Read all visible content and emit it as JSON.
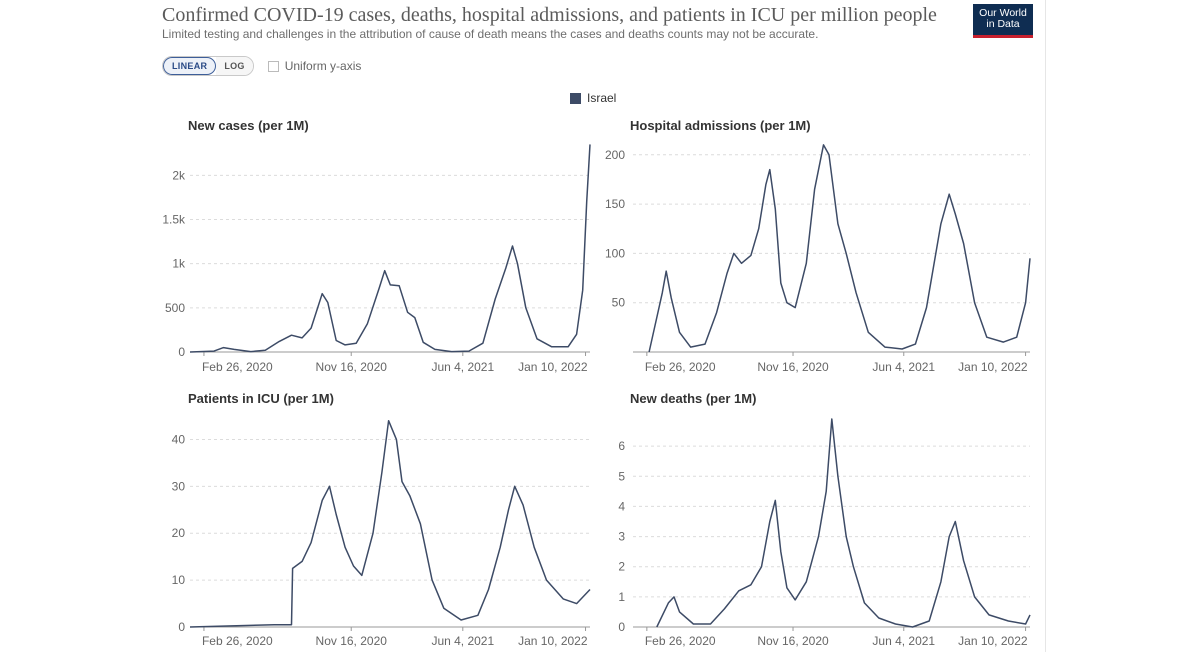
{
  "header": {
    "title": "Confirmed COVID-19 cases, deaths, hospital admissions, and patients in ICU per million people",
    "subtitle": "Limited testing and challenges in the attribution of cause of death means the cases and deaths counts may not be accurate.",
    "logo_line1": "Our World",
    "logo_line2": "in Data"
  },
  "controls": {
    "linear_label": "LINEAR",
    "log_label": "LOG",
    "uniform_label": "Uniform y-axis",
    "uniform_checked": false
  },
  "legend": {
    "label": "Israel",
    "color": "#3d4b66"
  },
  "colors": {
    "series": "#3d4b66",
    "grid": "#dcdcdc"
  },
  "chart_data": [
    {
      "type": "line",
      "title": "New cases (per 1M)",
      "x_ticks": [
        "Feb 26, 2020",
        "Nov 16, 2020",
        "Jun 4, 2021",
        "Jan 10, 2022"
      ],
      "y_ticks": [
        0,
        500,
        1000,
        1500,
        2000
      ],
      "y_tick_labels": [
        "0",
        "500",
        "1k",
        "1.5k",
        "2k"
      ],
      "ylim": [
        0,
        2400
      ],
      "xlim": [
        "2020-02-01",
        "2022-01-18"
      ],
      "series": [
        {
          "name": "Israel",
          "points": [
            [
              "2020-02-01",
              0
            ],
            [
              "2020-03-15",
              10
            ],
            [
              "2020-04-01",
              50
            ],
            [
              "2020-04-20",
              30
            ],
            [
              "2020-05-20",
              5
            ],
            [
              "2020-06-15",
              20
            ],
            [
              "2020-07-10",
              120
            ],
            [
              "2020-08-01",
              190
            ],
            [
              "2020-08-20",
              160
            ],
            [
              "2020-09-05",
              270
            ],
            [
              "2020-09-25",
              660
            ],
            [
              "2020-10-05",
              560
            ],
            [
              "2020-10-20",
              130
            ],
            [
              "2020-11-05",
              80
            ],
            [
              "2020-11-25",
              100
            ],
            [
              "2020-12-15",
              320
            ],
            [
              "2021-01-05",
              720
            ],
            [
              "2021-01-15",
              920
            ],
            [
              "2021-01-25",
              760
            ],
            [
              "2021-02-10",
              750
            ],
            [
              "2021-02-25",
              450
            ],
            [
              "2021-03-10",
              390
            ],
            [
              "2021-03-25",
              110
            ],
            [
              "2021-04-15",
              30
            ],
            [
              "2021-05-15",
              5
            ],
            [
              "2021-06-15",
              10
            ],
            [
              "2021-07-10",
              100
            ],
            [
              "2021-08-01",
              600
            ],
            [
              "2021-08-20",
              950
            ],
            [
              "2021-09-01",
              1200
            ],
            [
              "2021-09-10",
              1000
            ],
            [
              "2021-09-25",
              500
            ],
            [
              "2021-10-15",
              150
            ],
            [
              "2021-11-10",
              60
            ],
            [
              "2021-12-10",
              60
            ],
            [
              "2021-12-25",
              200
            ],
            [
              "2022-01-05",
              700
            ],
            [
              "2022-01-12",
              1700
            ],
            [
              "2022-01-18",
              2350
            ]
          ]
        }
      ]
    },
    {
      "type": "line",
      "title": "Hospital admissions (per 1M)",
      "x_ticks": [
        "Feb 26, 2020",
        "Nov 16, 2020",
        "Jun 4, 2021",
        "Jan 10, 2022"
      ],
      "y_ticks": [
        50,
        100,
        150,
        200
      ],
      "y_tick_labels": [
        "50",
        "100",
        "150",
        "200"
      ],
      "ylim": [
        0,
        215
      ],
      "xlim": [
        "2020-02-01",
        "2022-01-18"
      ],
      "series": [
        {
          "name": "Israel",
          "points": [
            [
              "2020-03-01",
              0
            ],
            [
              "2020-03-15",
              35
            ],
            [
              "2020-03-25",
              60
            ],
            [
              "2020-04-01",
              82
            ],
            [
              "2020-04-10",
              55
            ],
            [
              "2020-04-25",
              20
            ],
            [
              "2020-05-15",
              5
            ],
            [
              "2020-06-10",
              8
            ],
            [
              "2020-07-01",
              40
            ],
            [
              "2020-07-20",
              80
            ],
            [
              "2020-08-01",
              100
            ],
            [
              "2020-08-15",
              90
            ],
            [
              "2020-09-01",
              98
            ],
            [
              "2020-09-15",
              125
            ],
            [
              "2020-09-28",
              170
            ],
            [
              "2020-10-05",
              185
            ],
            [
              "2020-10-15",
              145
            ],
            [
              "2020-10-25",
              70
            ],
            [
              "2020-11-05",
              50
            ],
            [
              "2020-11-20",
              45
            ],
            [
              "2020-12-10",
              90
            ],
            [
              "2020-12-25",
              165
            ],
            [
              "2021-01-10",
              210
            ],
            [
              "2021-01-20",
              200
            ],
            [
              "2021-02-05",
              130
            ],
            [
              "2021-02-20",
              100
            ],
            [
              "2021-03-10",
              60
            ],
            [
              "2021-04-01",
              20
            ],
            [
              "2021-05-01",
              5
            ],
            [
              "2021-06-01",
              3
            ],
            [
              "2021-06-25",
              8
            ],
            [
              "2021-07-15",
              45
            ],
            [
              "2021-08-10",
              130
            ],
            [
              "2021-08-25",
              160
            ],
            [
              "2021-09-05",
              140
            ],
            [
              "2021-09-20",
              110
            ],
            [
              "2021-10-10",
              50
            ],
            [
              "2021-11-01",
              15
            ],
            [
              "2021-12-01",
              10
            ],
            [
              "2021-12-25",
              15
            ],
            [
              "2022-01-10",
              50
            ],
            [
              "2022-01-18",
              95
            ]
          ]
        }
      ]
    },
    {
      "type": "line",
      "title": "Patients in ICU (per 1M)",
      "x_ticks": [
        "Feb 26, 2020",
        "Nov 16, 2020",
        "Jun 4, 2021",
        "Jan 10, 2022"
      ],
      "y_ticks": [
        0,
        10,
        20,
        30,
        40
      ],
      "y_tick_labels": [
        "0",
        "10",
        "20",
        "30",
        "40"
      ],
      "ylim": [
        0,
        45
      ],
      "xlim": [
        "2020-02-01",
        "2022-01-18"
      ],
      "series": [
        {
          "name": "Israel",
          "points": [
            [
              "2020-02-01",
              0
            ],
            [
              "2020-07-01",
              0.5
            ],
            [
              "2020-08-01",
              0.5
            ],
            [
              "2020-08-03",
              12.5
            ],
            [
              "2020-08-20",
              14
            ],
            [
              "2020-09-05",
              18
            ],
            [
              "2020-09-25",
              27
            ],
            [
              "2020-10-08",
              30
            ],
            [
              "2020-10-20",
              24
            ],
            [
              "2020-11-05",
              17
            ],
            [
              "2020-11-20",
              13
            ],
            [
              "2020-12-05",
              11
            ],
            [
              "2020-12-25",
              20
            ],
            [
              "2021-01-10",
              33
            ],
            [
              "2021-01-22",
              44
            ],
            [
              "2021-02-05",
              40
            ],
            [
              "2021-02-15",
              31
            ],
            [
              "2021-03-01",
              28
            ],
            [
              "2021-03-20",
              22
            ],
            [
              "2021-04-10",
              10
            ],
            [
              "2021-05-01",
              4
            ],
            [
              "2021-06-01",
              1.5
            ],
            [
              "2021-07-01",
              2.5
            ],
            [
              "2021-07-20",
              8
            ],
            [
              "2021-08-10",
              17
            ],
            [
              "2021-08-25",
              25
            ],
            [
              "2021-09-05",
              30
            ],
            [
              "2021-09-20",
              26
            ],
            [
              "2021-10-10",
              17
            ],
            [
              "2021-11-01",
              10
            ],
            [
              "2021-12-01",
              6
            ],
            [
              "2021-12-25",
              5
            ],
            [
              "2022-01-18",
              8
            ]
          ]
        }
      ]
    },
    {
      "type": "line",
      "title": "New deaths (per 1M)",
      "x_ticks": [
        "Feb 26, 2020",
        "Nov 16, 2020",
        "Jun 4, 2021",
        "Jan 10, 2022"
      ],
      "y_ticks": [
        0,
        1,
        2,
        3,
        4,
        5,
        6
      ],
      "y_tick_labels": [
        "0",
        "1",
        "2",
        "3",
        "4",
        "5",
        "6"
      ],
      "ylim": [
        0,
        7
      ],
      "xlim": [
        "2020-02-01",
        "2022-01-18"
      ],
      "series": [
        {
          "name": "Israel",
          "points": [
            [
              "2020-03-15",
              0
            ],
            [
              "2020-04-05",
              0.8
            ],
            [
              "2020-04-15",
              1
            ],
            [
              "2020-04-25",
              0.5
            ],
            [
              "2020-05-20",
              0.1
            ],
            [
              "2020-06-20",
              0.1
            ],
            [
              "2020-07-15",
              0.6
            ],
            [
              "2020-08-10",
              1.2
            ],
            [
              "2020-09-01",
              1.4
            ],
            [
              "2020-09-20",
              2
            ],
            [
              "2020-10-05",
              3.5
            ],
            [
              "2020-10-15",
              4.2
            ],
            [
              "2020-10-25",
              2.5
            ],
            [
              "2020-11-05",
              1.3
            ],
            [
              "2020-11-20",
              0.9
            ],
            [
              "2020-12-10",
              1.5
            ],
            [
              "2021-01-01",
              3
            ],
            [
              "2021-01-15",
              4.5
            ],
            [
              "2021-01-25",
              6.9
            ],
            [
              "2021-02-05",
              5
            ],
            [
              "2021-02-20",
              3
            ],
            [
              "2021-03-05",
              2
            ],
            [
              "2021-03-25",
              0.8
            ],
            [
              "2021-04-20",
              0.3
            ],
            [
              "2021-05-20",
              0.1
            ],
            [
              "2021-06-20",
              0
            ],
            [
              "2021-07-20",
              0.2
            ],
            [
              "2021-08-10",
              1.5
            ],
            [
              "2021-08-25",
              3
            ],
            [
              "2021-09-05",
              3.5
            ],
            [
              "2021-09-20",
              2.2
            ],
            [
              "2021-10-10",
              1
            ],
            [
              "2021-11-05",
              0.4
            ],
            [
              "2021-12-10",
              0.2
            ],
            [
              "2022-01-10",
              0.1
            ],
            [
              "2022-01-18",
              0.4
            ]
          ]
        }
      ]
    }
  ]
}
